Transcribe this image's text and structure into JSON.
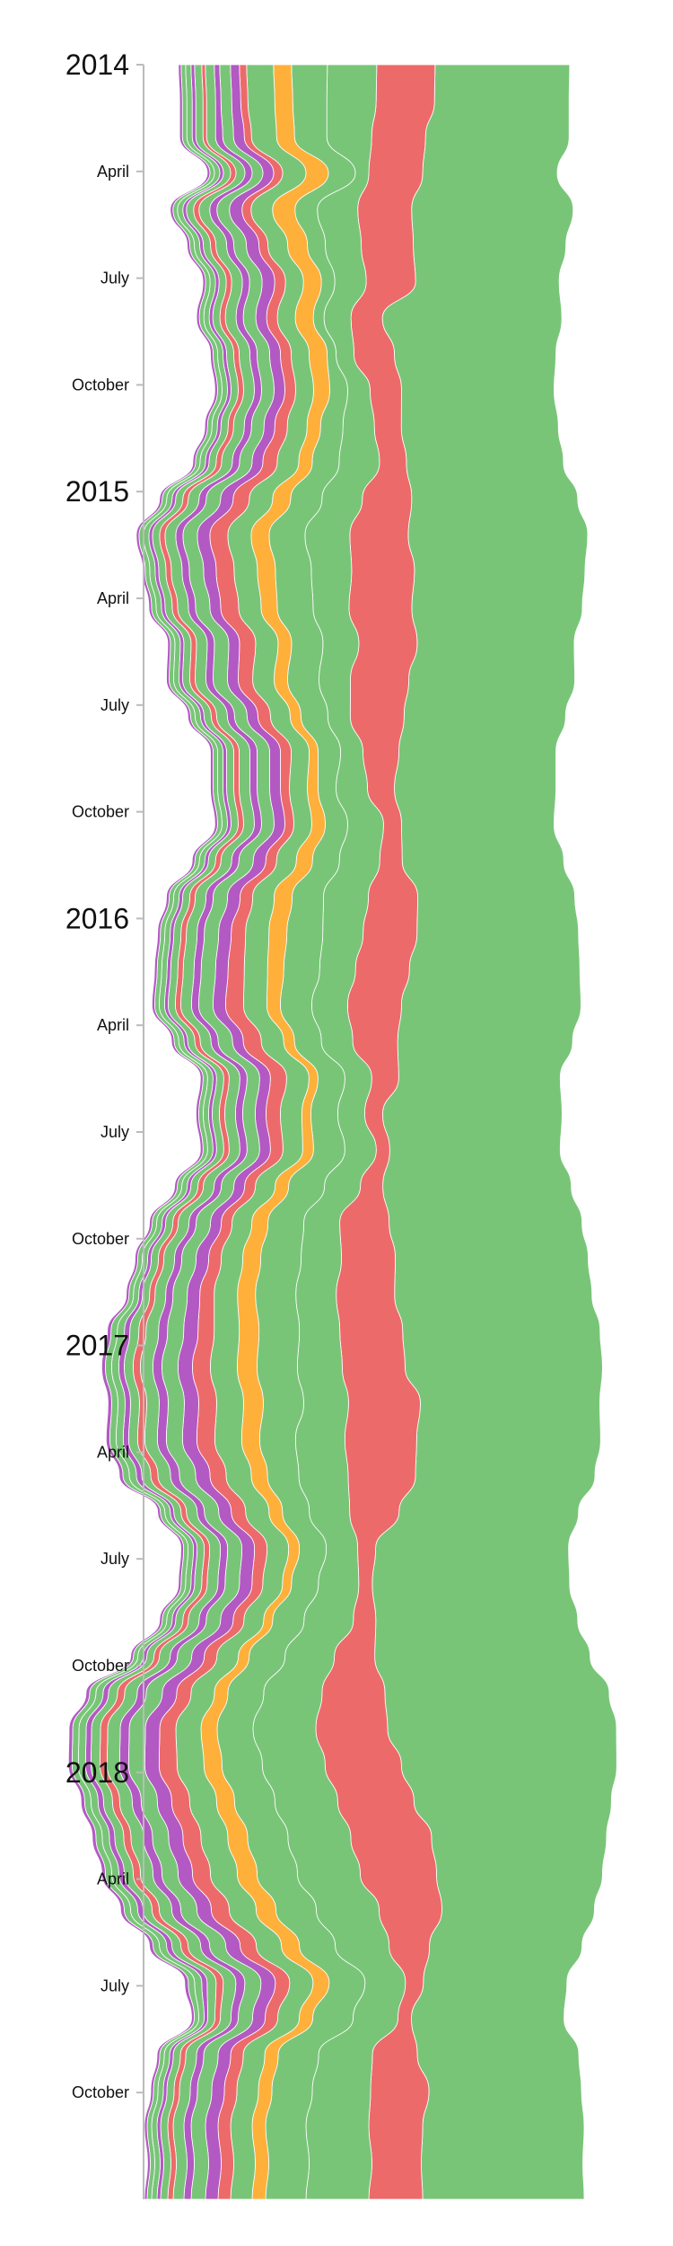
{
  "chart_data": {
    "type": "streamgraph",
    "title": "",
    "orientation": "vertical",
    "time_axis": {
      "start": "2014-01",
      "end": "2018-12",
      "ticks": [
        {
          "label": "2014",
          "date": "2014-01",
          "major": true
        },
        {
          "label": "April",
          "date": "2014-04",
          "major": false
        },
        {
          "label": "July",
          "date": "2014-07",
          "major": false
        },
        {
          "label": "October",
          "date": "2014-10",
          "major": false
        },
        {
          "label": "2015",
          "date": "2015-01",
          "major": true
        },
        {
          "label": "April",
          "date": "2015-04",
          "major": false
        },
        {
          "label": "July",
          "date": "2015-07",
          "major": false
        },
        {
          "label": "October",
          "date": "2015-10",
          "major": false
        },
        {
          "label": "2016",
          "date": "2016-01",
          "major": true
        },
        {
          "label": "April",
          "date": "2016-04",
          "major": false
        },
        {
          "label": "July",
          "date": "2016-07",
          "major": false
        },
        {
          "label": "October",
          "date": "2016-10",
          "major": false
        },
        {
          "label": "2017",
          "date": "2017-01",
          "major": true
        },
        {
          "label": "April",
          "date": "2017-04",
          "major": false
        },
        {
          "label": "July",
          "date": "2017-07",
          "major": false
        },
        {
          "label": "October",
          "date": "2017-10",
          "major": false
        },
        {
          "label": "2018",
          "date": "2018-01",
          "major": true
        },
        {
          "label": "April",
          "date": "2018-04",
          "major": false
        },
        {
          "label": "July",
          "date": "2018-07",
          "major": false
        },
        {
          "label": "October",
          "date": "2018-10",
          "major": false
        }
      ]
    },
    "colors": {
      "green": "#6abf69",
      "red": "#eb5a5a",
      "orange": "#ffa726",
      "purple": "#ab47bc",
      "axis": "#bbbbbb"
    },
    "series": [
      {
        "color": "green",
        "values": [
          150,
          150,
          160,
          150,
          180,
          170,
          160,
          200,
          180,
          170,
          175,
          175,
          185,
          200,
          190,
          190,
          175,
          185,
          180,
          175,
          180,
          170,
          180,
          175,
          180,
          190,
          200,
          195,
          180,
          200,
          190,
          210,
          215,
          215,
          220,
          220,
          220,
          200,
          205,
          200,
          200,
          215,
          220,
          225,
          240,
          250,
          255,
          240,
          220,
          195,
          185,
          170,
          170,
          160,
          170,
          180,
          170,
          180,
          180,
          180
        ]
      },
      {
        "color": "red",
        "values": [
          65,
          65,
          60,
          60,
          60,
          58,
          55,
          35,
          45,
          35,
          30,
          30,
          55,
          65,
          70,
          70,
          65,
          65,
          60,
          40,
          30,
          20,
          25,
          55,
          60,
          60,
          60,
          50,
          30,
          20,
          15,
          25,
          55,
          60,
          65,
          70,
          70,
          80,
          80,
          75,
          55,
          20,
          15,
          25,
          45,
          70,
          80,
          85,
          85,
          90,
          85,
          70,
          45,
          20,
          15,
          50,
          65,
          60,
          55,
          60
        ]
      },
      {
        "color": "green",
        "values": [
          55,
          55,
          50,
          15,
          45,
          40,
          35,
          30,
          20,
          25,
          35,
          45,
          45,
          50,
          45,
          40,
          40,
          35,
          25,
          25,
          35,
          40,
          45,
          50,
          45,
          40,
          40,
          35,
          30,
          30,
          35,
          40,
          40,
          45,
          45,
          45,
          50,
          50,
          55,
          55,
          45,
          35,
          45,
          55,
          55,
          65,
          70,
          70,
          70,
          70,
          70,
          70,
          60,
          45,
          50,
          60,
          65,
          70,
          70,
          70
        ]
      },
      {
        "color": "green",
        "values": [
          40,
          38,
          36,
          30,
          25,
          20,
          15,
          12,
          10,
          20,
          25,
          30,
          35,
          40,
          40,
          40,
          35,
          35,
          30,
          25,
          20,
          25,
          30,
          35,
          40,
          40,
          35,
          30,
          30,
          30,
          35,
          40,
          40,
          45,
          45,
          45,
          45,
          45,
          40,
          35,
          30,
          30,
          30,
          35,
          40,
          40,
          40,
          45,
          45,
          45,
          45,
          45,
          40,
          40,
          45,
          45,
          45,
          45,
          45,
          45
        ]
      },
      {
        "color": "orange",
        "values": [
          20,
          20,
          20,
          25,
          25,
          22,
          20,
          20,
          20,
          18,
          15,
          15,
          20,
          20,
          20,
          18,
          15,
          15,
          12,
          10,
          12,
          15,
          18,
          20,
          20,
          18,
          15,
          12,
          10,
          10,
          12,
          15,
          18,
          20,
          20,
          22,
          22,
          22,
          20,
          18,
          15,
          12,
          10,
          10,
          12,
          15,
          18,
          20,
          20,
          22,
          22,
          22,
          20,
          18,
          15,
          15,
          15,
          15,
          15,
          15
        ]
      },
      {
        "color": "green",
        "values": [
          30,
          30,
          28,
          26,
          24,
          22,
          20,
          20,
          20,
          20,
          22,
          24,
          26,
          26,
          26,
          25,
          25,
          24,
          22,
          20,
          20,
          20,
          22,
          24,
          26,
          26,
          26,
          25,
          25,
          24,
          22,
          22,
          22,
          24,
          26,
          28,
          30,
          30,
          30,
          28,
          26,
          24,
          22,
          22,
          24,
          26,
          28,
          30,
          30,
          30,
          30,
          30,
          28,
          26,
          24,
          24,
          24,
          24,
          24,
          24
        ]
      },
      {
        "color": "red",
        "values": [
          8,
          8,
          8,
          10,
          10,
          10,
          12,
          12,
          12,
          12,
          14,
          16,
          18,
          20,
          20,
          20,
          18,
          16,
          14,
          12,
          10,
          10,
          12,
          14,
          16,
          18,
          20,
          20,
          18,
          16,
          14,
          12,
          12,
          14,
          16,
          18,
          20,
          20,
          20,
          18,
          16,
          14,
          12,
          12,
          14,
          16,
          18,
          20,
          20,
          20,
          20,
          20,
          18,
          16,
          14,
          14,
          14,
          14,
          14,
          14
        ]
      },
      {
        "color": "purple",
        "values": [
          10,
          10,
          12,
          12,
          14,
          14,
          14,
          12,
          12,
          12,
          12,
          12,
          14,
          14,
          14,
          12,
          12,
          12,
          12,
          12,
          12,
          12,
          14,
          14,
          14,
          14,
          14,
          12,
          12,
          12,
          12,
          12,
          12,
          14,
          14,
          16,
          16,
          16,
          16,
          16,
          14,
          14,
          14,
          14,
          14,
          16,
          16,
          16,
          16,
          16,
          16,
          16,
          16,
          16,
          14,
          14,
          14,
          14,
          14,
          14
        ]
      },
      {
        "color": "green",
        "values": [
          12,
          12,
          12,
          12,
          14,
          14,
          14,
          14,
          14,
          14,
          14,
          14,
          16,
          16,
          16,
          16,
          16,
          16,
          14,
          14,
          14,
          14,
          16,
          16,
          16,
          16,
          16,
          16,
          14,
          14,
          14,
          14,
          16,
          16,
          16,
          18,
          18,
          18,
          18,
          18,
          16,
          16,
          16,
          16,
          16,
          18,
          18,
          18,
          18,
          18,
          18,
          18,
          18,
          18,
          16,
          16,
          16,
          16,
          16,
          16
        ]
      },
      {
        "color": "purple",
        "values": [
          6,
          6,
          8,
          8,
          8,
          8,
          8,
          8,
          8,
          8,
          8,
          8,
          8,
          8,
          8,
          8,
          8,
          8,
          8,
          8,
          8,
          8,
          8,
          8,
          8,
          8,
          8,
          8,
          8,
          8,
          8,
          8,
          8,
          8,
          8,
          10,
          10,
          10,
          10,
          10,
          8,
          8,
          8,
          8,
          8,
          10,
          10,
          10,
          10,
          10,
          10,
          10,
          10,
          10,
          8,
          8,
          8,
          8,
          8,
          8
        ]
      },
      {
        "color": "green",
        "values": [
          10,
          10,
          10,
          10,
          12,
          12,
          12,
          12,
          12,
          12,
          12,
          12,
          12,
          12,
          12,
          12,
          12,
          12,
          12,
          12,
          12,
          12,
          12,
          12,
          12,
          12,
          12,
          12,
          12,
          12,
          12,
          12,
          12,
          12,
          12,
          14,
          14,
          14,
          14,
          14,
          12,
          12,
          12,
          12,
          12,
          14,
          14,
          14,
          14,
          14,
          14,
          14,
          14,
          14,
          12,
          12,
          12,
          12,
          12,
          12
        ]
      },
      {
        "color": "red",
        "values": [
          4,
          4,
          4,
          6,
          6,
          6,
          6,
          6,
          6,
          6,
          6,
          6,
          6,
          6,
          6,
          6,
          6,
          6,
          6,
          6,
          6,
          6,
          6,
          6,
          6,
          6,
          6,
          6,
          6,
          6,
          6,
          6,
          6,
          6,
          6,
          8,
          8,
          8,
          8,
          8,
          6,
          6,
          6,
          6,
          6,
          8,
          8,
          8,
          8,
          8,
          8,
          8,
          8,
          8,
          6,
          6,
          6,
          6,
          6,
          6
        ]
      },
      {
        "color": "green",
        "values": [
          8,
          8,
          8,
          8,
          8,
          8,
          8,
          8,
          8,
          8,
          8,
          8,
          8,
          8,
          8,
          8,
          8,
          8,
          8,
          8,
          8,
          8,
          8,
          8,
          8,
          8,
          8,
          8,
          8,
          8,
          8,
          8,
          8,
          8,
          8,
          10,
          10,
          10,
          10,
          10,
          8,
          8,
          8,
          8,
          8,
          10,
          10,
          10,
          10,
          10,
          10,
          10,
          10,
          10,
          8,
          8,
          8,
          8,
          8,
          8
        ]
      },
      {
        "color": "purple",
        "values": [
          4,
          4,
          4,
          4,
          4,
          4,
          4,
          4,
          4,
          4,
          4,
          4,
          4,
          4,
          4,
          4,
          4,
          4,
          4,
          4,
          4,
          4,
          4,
          4,
          4,
          4,
          4,
          4,
          4,
          4,
          4,
          4,
          4,
          4,
          4,
          6,
          6,
          6,
          6,
          6,
          4,
          4,
          4,
          4,
          4,
          6,
          6,
          6,
          6,
          6,
          6,
          6,
          6,
          6,
          4,
          4,
          4,
          4,
          4,
          4
        ]
      },
      {
        "color": "green",
        "values": [
          6,
          6,
          6,
          6,
          6,
          6,
          6,
          6,
          6,
          6,
          6,
          6,
          6,
          6,
          6,
          6,
          6,
          6,
          6,
          6,
          6,
          6,
          6,
          6,
          6,
          6,
          6,
          6,
          6,
          6,
          6,
          6,
          6,
          6,
          6,
          8,
          8,
          8,
          8,
          8,
          6,
          6,
          6,
          6,
          6,
          8,
          8,
          8,
          8,
          8,
          8,
          8,
          8,
          8,
          6,
          6,
          6,
          6,
          6,
          6
        ]
      },
      {
        "color": "green",
        "values": [
          5,
          5,
          5,
          5,
          5,
          5,
          5,
          5,
          5,
          5,
          5,
          5,
          5,
          5,
          5,
          5,
          5,
          5,
          5,
          5,
          5,
          5,
          5,
          5,
          5,
          5,
          5,
          5,
          5,
          5,
          5,
          5,
          5,
          5,
          5,
          7,
          7,
          7,
          7,
          7,
          5,
          5,
          5,
          5,
          5,
          7,
          7,
          7,
          7,
          7,
          7,
          7,
          7,
          7,
          5,
          5,
          5,
          5,
          5,
          5
        ]
      },
      {
        "color": "purple",
        "values": [
          3,
          3,
          3,
          3,
          3,
          3,
          3,
          3,
          3,
          3,
          3,
          3,
          3,
          3,
          3,
          3,
          3,
          3,
          3,
          3,
          3,
          3,
          3,
          3,
          3,
          3,
          3,
          3,
          3,
          3,
          3,
          3,
          3,
          3,
          3,
          4,
          4,
          4,
          4,
          4,
          3,
          3,
          3,
          3,
          3,
          4,
          4,
          4,
          4,
          4,
          4,
          4,
          4,
          4,
          3,
          3,
          3,
          3,
          3,
          3
        ]
      }
    ]
  }
}
